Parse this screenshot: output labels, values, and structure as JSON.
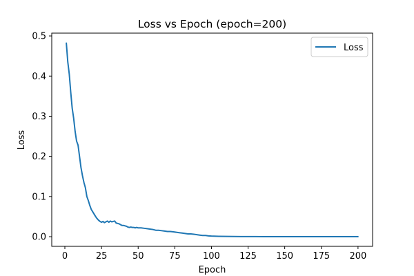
{
  "chart_data": {
    "type": "line",
    "title": "Loss vs Epoch (epoch=200)",
    "xlabel": "Epoch",
    "ylabel": "Loss",
    "xlim": [
      -8.95,
      209.95
    ],
    "ylim": [
      -0.024,
      0.507
    ],
    "xticks": [
      0,
      25,
      50,
      75,
      100,
      125,
      150,
      175,
      200
    ],
    "yticks": [
      0.0,
      0.1,
      0.2,
      0.3,
      0.4,
      0.5
    ],
    "ytick_labels": [
      "0.0",
      "0.1",
      "0.2",
      "0.3",
      "0.4",
      "0.5"
    ],
    "grid": false,
    "legend_position": "top-right",
    "series": [
      {
        "name": "Loss",
        "color": "#1f77b4",
        "points": [
          [
            1,
            0.482
          ],
          [
            2,
            0.435
          ],
          [
            3,
            0.405
          ],
          [
            4,
            0.36
          ],
          [
            5,
            0.32
          ],
          [
            6,
            0.295
          ],
          [
            7,
            0.262
          ],
          [
            8,
            0.238
          ],
          [
            9,
            0.228
          ],
          [
            10,
            0.2
          ],
          [
            11,
            0.172
          ],
          [
            12,
            0.152
          ],
          [
            13,
            0.135
          ],
          [
            14,
            0.122
          ],
          [
            15,
            0.1
          ],
          [
            16,
            0.09
          ],
          [
            17,
            0.078
          ],
          [
            18,
            0.068
          ],
          [
            19,
            0.062
          ],
          [
            20,
            0.056
          ],
          [
            21,
            0.05
          ],
          [
            22,
            0.045
          ],
          [
            23,
            0.041
          ],
          [
            24,
            0.038
          ],
          [
            25,
            0.036
          ],
          [
            26,
            0.038
          ],
          [
            27,
            0.035
          ],
          [
            28,
            0.037
          ],
          [
            29,
            0.039
          ],
          [
            30,
            0.036
          ],
          [
            31,
            0.039
          ],
          [
            32,
            0.037
          ],
          [
            33,
            0.038
          ],
          [
            34,
            0.039
          ],
          [
            35,
            0.034
          ],
          [
            36,
            0.033
          ],
          [
            37,
            0.032
          ],
          [
            38,
            0.03
          ],
          [
            39,
            0.028
          ],
          [
            40,
            0.028
          ],
          [
            41,
            0.027
          ],
          [
            42,
            0.026
          ],
          [
            43,
            0.024
          ],
          [
            44,
            0.023
          ],
          [
            45,
            0.024
          ],
          [
            46,
            0.023
          ],
          [
            47,
            0.023
          ],
          [
            48,
            0.022
          ],
          [
            49,
            0.023
          ],
          [
            50,
            0.022
          ],
          [
            52,
            0.022
          ],
          [
            54,
            0.021
          ],
          [
            56,
            0.02
          ],
          [
            58,
            0.019
          ],
          [
            60,
            0.018
          ],
          [
            62,
            0.016
          ],
          [
            64,
            0.016
          ],
          [
            66,
            0.015
          ],
          [
            68,
            0.014
          ],
          [
            70,
            0.013
          ],
          [
            72,
            0.013
          ],
          [
            74,
            0.012
          ],
          [
            76,
            0.011
          ],
          [
            78,
            0.01
          ],
          [
            80,
            0.009
          ],
          [
            82,
            0.008
          ],
          [
            84,
            0.007
          ],
          [
            86,
            0.007
          ],
          [
            88,
            0.006
          ],
          [
            90,
            0.005
          ],
          [
            92,
            0.004
          ],
          [
            94,
            0.003
          ],
          [
            96,
            0.003
          ],
          [
            98,
            0.002
          ],
          [
            100,
            0.0015
          ],
          [
            105,
            0.001
          ],
          [
            110,
            0.0006
          ],
          [
            115,
            0.0004
          ],
          [
            120,
            0.0003
          ],
          [
            130,
            0.0002
          ],
          [
            140,
            0.0001
          ],
          [
            150,
            0.0001
          ],
          [
            160,
            0.0
          ],
          [
            170,
            0.0
          ],
          [
            180,
            0.0
          ],
          [
            190,
            0.0
          ],
          [
            200,
            0.0
          ]
        ]
      }
    ]
  }
}
